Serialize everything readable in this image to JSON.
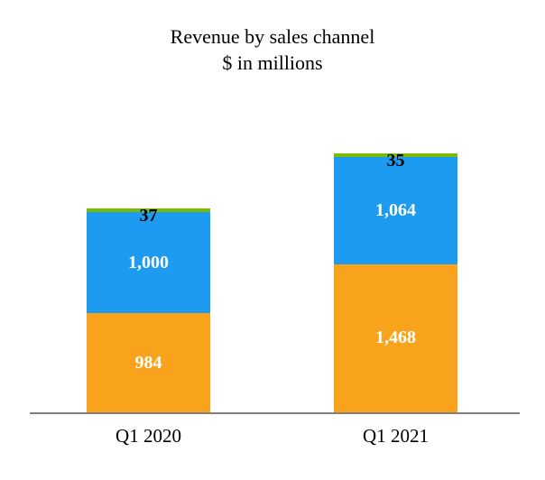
{
  "chart_data": {
    "type": "bar",
    "stacked": true,
    "title": "Revenue by sales channel",
    "subtitle": "$ in millions",
    "categories": [
      "Q1 2020",
      "Q1 2021"
    ],
    "series": [
      {
        "name": "bottom",
        "color": "#F9A21B",
        "values": [
          984,
          1468
        ],
        "labels": [
          "984",
          "1,468"
        ],
        "label_position": "inside",
        "label_color": "#ffffff"
      },
      {
        "name": "middle",
        "color": "#1C9BF0",
        "values": [
          1000,
          1064
        ],
        "labels": [
          "1,000",
          "1,064"
        ],
        "label_position": "inside",
        "label_color": "#ffffff"
      },
      {
        "name": "top",
        "color": "#7DBB00",
        "values": [
          37,
          35
        ],
        "labels": [
          "37",
          "35"
        ],
        "label_position": "top",
        "label_color": "#000000"
      }
    ],
    "totals": [
      2021,
      2567
    ],
    "ylim": [
      0,
      2600
    ],
    "gridlines": false,
    "legend": "none",
    "axis_line_color": "#7f7f7f"
  }
}
